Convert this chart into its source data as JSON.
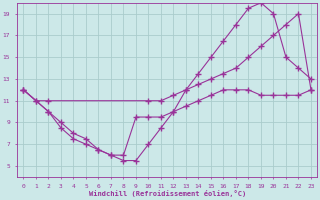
{
  "bg_color": "#cce8e8",
  "grid_color": "#aacccc",
  "line_color": "#993399",
  "xlabel": "Windchill (Refroidissement éolien,°C)",
  "xlim": [
    -0.5,
    23.5
  ],
  "ylim": [
    4,
    20
  ],
  "xticks": [
    0,
    1,
    2,
    3,
    4,
    5,
    6,
    7,
    8,
    9,
    10,
    11,
    12,
    13,
    14,
    15,
    16,
    17,
    18,
    19,
    20,
    21,
    22,
    23
  ],
  "yticks": [
    5,
    7,
    9,
    11,
    13,
    15,
    17,
    19
  ],
  "line1_x": [
    0,
    1,
    2,
    10,
    11,
    12,
    13,
    14,
    15,
    16,
    17,
    18,
    19,
    20,
    21,
    22,
    23
  ],
  "line1_y": [
    12,
    11,
    11,
    11,
    11,
    11.5,
    12,
    12.5,
    13,
    13.5,
    14,
    15,
    16,
    17,
    18,
    19,
    12
  ],
  "line2_x": [
    0,
    1,
    2,
    3,
    4,
    5,
    6,
    7,
    8,
    9,
    10,
    11,
    12,
    13,
    14,
    15,
    16,
    17,
    18,
    19,
    20,
    21,
    22,
    23
  ],
  "line2_y": [
    12,
    11,
    10,
    8.5,
    7.5,
    7,
    6.5,
    6,
    6,
    9.5,
    9.5,
    9.5,
    10,
    10.5,
    11,
    11.5,
    12,
    12,
    12,
    11.5,
    11.5,
    11.5,
    11.5,
    12
  ],
  "line3_x": [
    0,
    2,
    3,
    4,
    5,
    6,
    7,
    8,
    9,
    10,
    11,
    12,
    13,
    14,
    15,
    16,
    17,
    18,
    19,
    20,
    21,
    22,
    23
  ],
  "line3_y": [
    12,
    10,
    9,
    8,
    7.5,
    6.5,
    6,
    5.5,
    5.5,
    7,
    8.5,
    10,
    12,
    13.5,
    15,
    16.5,
    18,
    19.5,
    20,
    19,
    15,
    14,
    13
  ]
}
